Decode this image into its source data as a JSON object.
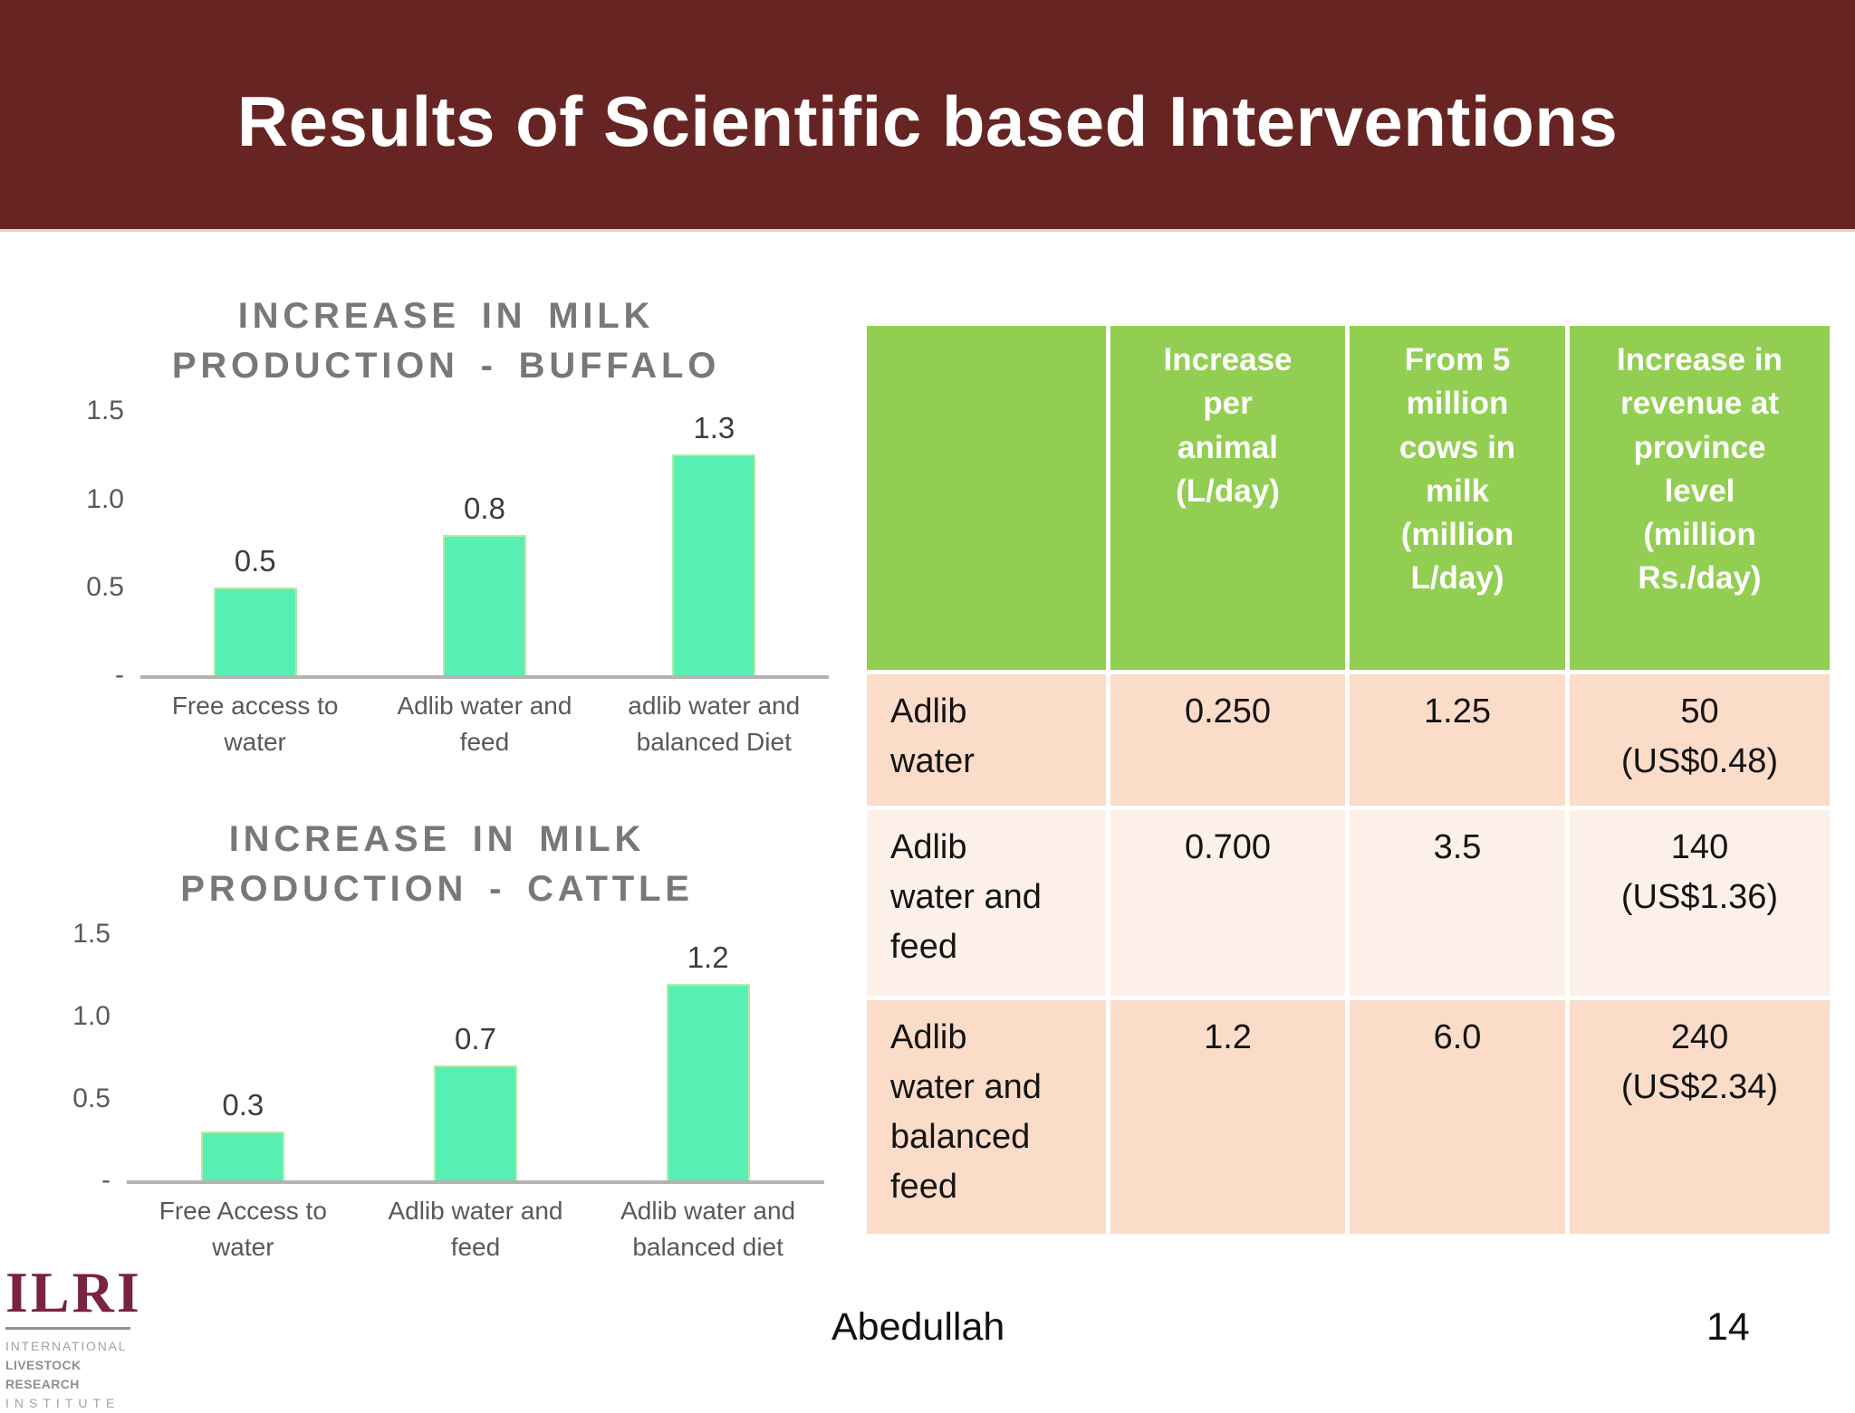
{
  "slide": {
    "title": "Results of Scientific based Interventions",
    "footer": {
      "author": "Abedullah",
      "page_number": "14"
    }
  },
  "logo": {
    "acronym": "ILRI",
    "lines": [
      "INTERNATIONAL",
      "LIVESTOCK RESEARCH",
      "INSTITUTE"
    ]
  },
  "colors": {
    "banner_bg": "#662523",
    "banner_text": "#ffffff",
    "chart_title_gray": "#787878",
    "axis_label_gray": "#595959",
    "bar_fill": "#57efb3",
    "axis_line": "#b3b3b3",
    "table_header_green": "#92ce52",
    "table_row_peach": "#fbdcc9",
    "table_row_light": "#fdf0e9",
    "logo_maroon": "#7a2240"
  },
  "chart_data": [
    {
      "type": "bar",
      "title": "INCREASE IN MILK PRODUCTION - BUFFALO",
      "title_lines": [
        "INCREASE IN MILK",
        "PRODUCTION - BUFFALO"
      ],
      "categories": [
        "Free access to water",
        "Adlib water and feed",
        "adlib water and balanced Diet"
      ],
      "values": [
        0.5,
        0.8,
        1.3
      ],
      "xlabel": "",
      "ylabel": "",
      "ylim": [
        0,
        1.5
      ],
      "yticks": [
        {
          "label": "1.5",
          "value": 1.5
        },
        {
          "label": "1.0",
          "value": 1.0
        },
        {
          "label": "0.5",
          "value": 0.5
        },
        {
          "label": "-",
          "value": 0
        }
      ],
      "grid": false,
      "legend": false
    },
    {
      "type": "bar",
      "title": "INCREASE IN MILK PRODUCTION - CATTLE",
      "title_lines": [
        "INCREASE IN MILK",
        "PRODUCTION - CATTLE"
      ],
      "categories": [
        "Free Access to water",
        "Adlib water and feed",
        "Adlib water and balanced diet"
      ],
      "values": [
        0.3,
        0.7,
        1.2
      ],
      "xlabel": "",
      "ylabel": "",
      "ylim": [
        0,
        1.5
      ],
      "yticks": [
        {
          "label": "1.5",
          "value": 1.5
        },
        {
          "label": "1.0",
          "value": 1.0
        },
        {
          "label": "0.5",
          "value": 0.5
        },
        {
          "label": "-",
          "value": 0
        }
      ],
      "grid": false,
      "legend": false
    }
  ],
  "table": {
    "headers": [
      "",
      "Increase\nper\nanimal\n(L/day)",
      "From 5\nmillion\ncows in\nmilk\n(million\nL/day)",
      "Increase in\nrevenue at\nprovince\nlevel\n(million\nRs./day)"
    ],
    "rows": [
      {
        "label": "Adlib\nwater",
        "cells": [
          "0.250",
          "1.25",
          "50\n(US$0.48)"
        ]
      },
      {
        "label": "Adlib\nwater and\nfeed",
        "cells": [
          "0.700",
          "3.5",
          "140\n(US$1.36)"
        ]
      },
      {
        "label": "Adlib\nwater and\nbalanced\nfeed",
        "cells": [
          "1.2",
          "6.0",
          "240\n(US$2.34)"
        ]
      }
    ]
  }
}
